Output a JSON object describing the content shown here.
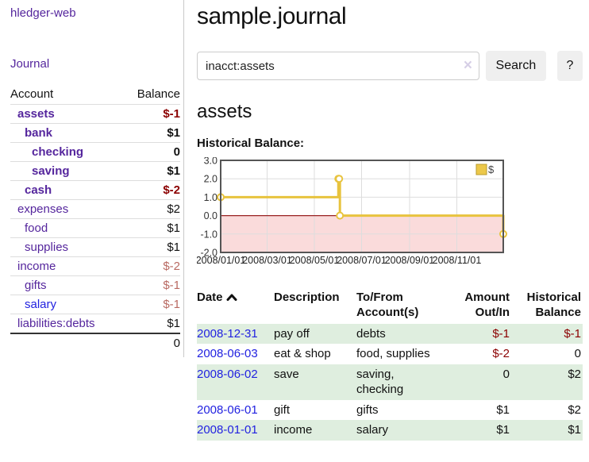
{
  "sidebar": {
    "app_title": "hledger-web",
    "journal_label": "Journal",
    "accounts_table": {
      "headers": {
        "account": "Account",
        "balance": "Balance"
      },
      "rows": [
        {
          "name": "assets",
          "indent": 1,
          "bold": true,
          "link_color": "purple",
          "balance": "$-1",
          "balance_class": "neg-strong"
        },
        {
          "name": "bank",
          "indent": 2,
          "bold": true,
          "link_color": "purple",
          "balance": "$1",
          "balance_class": ""
        },
        {
          "name": "checking",
          "indent": 3,
          "bold": true,
          "link_color": "purple",
          "balance": "0",
          "balance_class": ""
        },
        {
          "name": "saving",
          "indent": 3,
          "bold": true,
          "link_color": "purple",
          "balance": "$1",
          "balance_class": ""
        },
        {
          "name": "cash",
          "indent": 2,
          "bold": true,
          "link_color": "purple",
          "balance": "$-2",
          "balance_class": "neg-strong"
        },
        {
          "name": "expenses",
          "indent": 1,
          "bold": false,
          "link_color": "purple",
          "balance": "$2",
          "balance_class": ""
        },
        {
          "name": "food",
          "indent": 2,
          "bold": false,
          "link_color": "purple",
          "balance": "$1",
          "balance_class": ""
        },
        {
          "name": "supplies",
          "indent": 2,
          "bold": false,
          "link_color": "purple",
          "balance": "$1",
          "balance_class": ""
        },
        {
          "name": "income",
          "indent": 1,
          "bold": false,
          "link_color": "purple",
          "balance": "$-2",
          "balance_class": "neg-soft"
        },
        {
          "name": "gifts",
          "indent": 2,
          "bold": false,
          "link_color": "purple",
          "balance": "$-1",
          "balance_class": "neg-soft"
        },
        {
          "name": "salary",
          "indent": 2,
          "bold": false,
          "link_color": "blue",
          "balance": "$-1",
          "balance_class": "neg-soft"
        },
        {
          "name": "liabilities:debts",
          "indent": 1,
          "bold": false,
          "link_color": "purple",
          "balance": "$1",
          "balance_class": ""
        }
      ],
      "total": "0"
    }
  },
  "main": {
    "title": "sample.journal",
    "search": {
      "value": "inacct:assets",
      "clear_icon": "×",
      "search_button_label": "Search",
      "help_button_label": "?"
    },
    "section_title": "assets",
    "chart_label": "Historical Balance:",
    "register_table": {
      "headers": {
        "date": "Date",
        "description": "Description",
        "accounts": "To/From Account(s)",
        "amount": "Amount Out/In",
        "balance": "Historical Balance"
      },
      "rows": [
        {
          "date": "2008-12-31",
          "description": "pay off",
          "accounts": "debts",
          "amount": "$-1",
          "amount_negative": true,
          "balance": "$-1",
          "balance_negative": true,
          "shaded": true
        },
        {
          "date": "2008-06-03",
          "description": "eat & shop",
          "accounts": "food, supplies",
          "amount": "$-2",
          "amount_negative": true,
          "balance": "0",
          "balance_negative": false,
          "shaded": false
        },
        {
          "date": "2008-06-02",
          "description": "save",
          "accounts": "saving,\nchecking",
          "amount": "0",
          "amount_negative": false,
          "balance": "$2",
          "balance_negative": false,
          "shaded": true
        },
        {
          "date": "2008-06-01",
          "description": "gift",
          "accounts": "gifts",
          "amount": "$1",
          "amount_negative": false,
          "balance": "$2",
          "balance_negative": false,
          "shaded": false
        },
        {
          "date": "2008-01-01",
          "description": "income",
          "accounts": "salary",
          "amount": "$1",
          "amount_negative": false,
          "balance": "$1",
          "balance_negative": false,
          "shaded": true
        }
      ]
    }
  },
  "chart_data": {
    "type": "line",
    "title": "Historical Balance:",
    "legend": {
      "label": "$",
      "position": "top-right"
    },
    "ylim": [
      -2,
      3
    ],
    "y_ticks": [
      3.0,
      2.0,
      1.0,
      0.0,
      -1.0,
      -2.0
    ],
    "y_tick_labels": [
      "3.0",
      "2.0",
      "1.0",
      "0.0",
      "-1.0",
      "-2.0"
    ],
    "x_max_days": 365,
    "x_ticks_days": [
      0,
      60,
      121,
      182,
      244,
      305
    ],
    "x_tick_labels": [
      "2008/01/01",
      "2008/03/01",
      "2008/05/01",
      "2008/07/01",
      "2008/09/01",
      "2008/11/01"
    ],
    "series": [
      {
        "name": "$",
        "step": true,
        "points": [
          {
            "date": "2008-01-01",
            "day": 0,
            "value": 1
          },
          {
            "date": "2008-06-01",
            "day": 152,
            "value": 2
          },
          {
            "date": "2008-06-02",
            "day": 153,
            "value": 2
          },
          {
            "date": "2008-06-03",
            "day": 154,
            "value": 0
          },
          {
            "date": "2008-12-31",
            "day": 365,
            "value": -1
          }
        ]
      }
    ],
    "grid": true,
    "colors": {
      "line": "#e8c33e",
      "marker_fill": "#ffffff",
      "negative_region": "#fadbdb",
      "zero_line": "#992222",
      "gridline": "#dddddd",
      "border": "#555555",
      "legend_square_fill": "#ecc84a",
      "legend_square_border": "#b89b2e",
      "tick_text": "#333333"
    }
  }
}
